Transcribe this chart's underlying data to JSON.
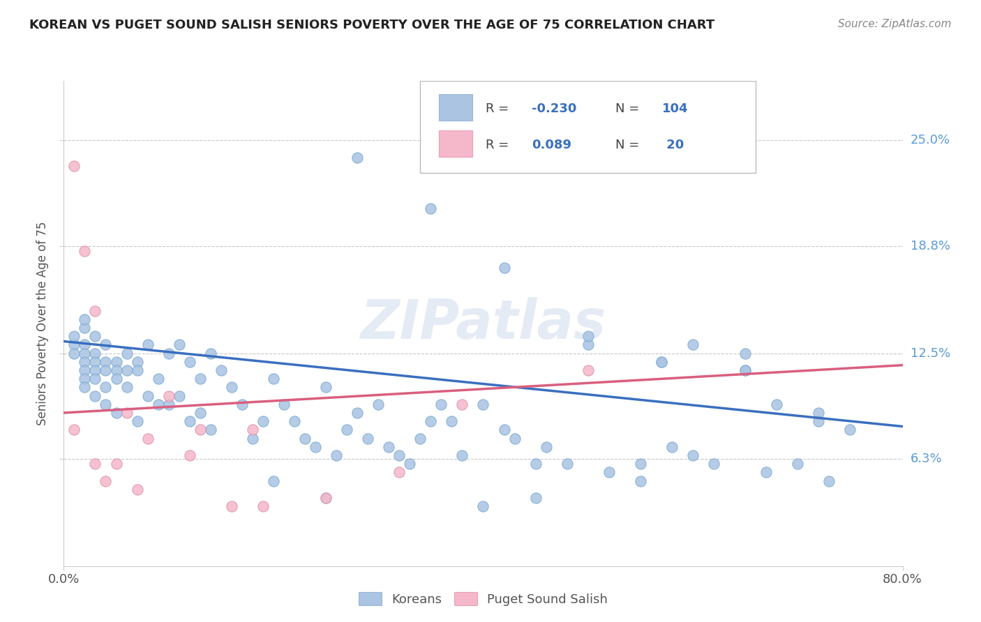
{
  "title": "KOREAN VS PUGET SOUND SALISH SENIORS POVERTY OVER THE AGE OF 75 CORRELATION CHART",
  "source": "Source: ZipAtlas.com",
  "ylabel": "Seniors Poverty Over the Age of 75",
  "xlim": [
    0.0,
    0.8
  ],
  "ylim": [
    0.0,
    0.285
  ],
  "xticklabels": [
    "0.0%",
    "80.0%"
  ],
  "ytick_positions": [
    0.063,
    0.125,
    0.188,
    0.25
  ],
  "ytick_labels": [
    "6.3%",
    "12.5%",
    "18.8%",
    "25.0%"
  ],
  "korean_R": -0.23,
  "korean_N": 104,
  "salish_R": 0.089,
  "salish_N": 20,
  "korean_color": "#aac4e2",
  "salish_color": "#f5b8ca",
  "korean_line_color": "#3a6fbf",
  "salish_line_color": "#d95f7f",
  "watermark": "ZIPatlas",
  "background_color": "#ffffff",
  "grid_color": "#c8c8c8",
  "title_color": "#222222",
  "korean_line_y0": 0.132,
  "korean_line_y1": 0.082,
  "salish_line_y0": 0.09,
  "salish_line_y1": 0.118,
  "korean_scatter_x": [
    0.01,
    0.01,
    0.01,
    0.02,
    0.02,
    0.02,
    0.02,
    0.02,
    0.02,
    0.02,
    0.02,
    0.03,
    0.03,
    0.03,
    0.03,
    0.03,
    0.03,
    0.04,
    0.04,
    0.04,
    0.04,
    0.04,
    0.05,
    0.05,
    0.05,
    0.05,
    0.06,
    0.06,
    0.06,
    0.07,
    0.07,
    0.07,
    0.08,
    0.08,
    0.09,
    0.09,
    0.1,
    0.1,
    0.11,
    0.11,
    0.12,
    0.12,
    0.13,
    0.13,
    0.14,
    0.14,
    0.15,
    0.16,
    0.17,
    0.18,
    0.19,
    0.2,
    0.21,
    0.22,
    0.23,
    0.24,
    0.25,
    0.26,
    0.27,
    0.28,
    0.29,
    0.3,
    0.31,
    0.32,
    0.33,
    0.34,
    0.35,
    0.36,
    0.37,
    0.38,
    0.4,
    0.42,
    0.43,
    0.45,
    0.46,
    0.48,
    0.5,
    0.52,
    0.55,
    0.57,
    0.58,
    0.6,
    0.62,
    0.65,
    0.65,
    0.67,
    0.68,
    0.7,
    0.72,
    0.73,
    0.75,
    0.28,
    0.35,
    0.42,
    0.5,
    0.57,
    0.65,
    0.72,
    0.6,
    0.55,
    0.45,
    0.4,
    0.2,
    0.25
  ],
  "korean_scatter_y": [
    0.13,
    0.125,
    0.135,
    0.14,
    0.13,
    0.125,
    0.12,
    0.115,
    0.11,
    0.105,
    0.145,
    0.135,
    0.125,
    0.12,
    0.115,
    0.11,
    0.1,
    0.13,
    0.12,
    0.115,
    0.105,
    0.095,
    0.12,
    0.115,
    0.11,
    0.09,
    0.125,
    0.115,
    0.105,
    0.12,
    0.115,
    0.085,
    0.13,
    0.1,
    0.11,
    0.095,
    0.125,
    0.095,
    0.13,
    0.1,
    0.12,
    0.085,
    0.11,
    0.09,
    0.125,
    0.08,
    0.115,
    0.105,
    0.095,
    0.075,
    0.085,
    0.11,
    0.095,
    0.085,
    0.075,
    0.07,
    0.105,
    0.065,
    0.08,
    0.09,
    0.075,
    0.095,
    0.07,
    0.065,
    0.06,
    0.075,
    0.085,
    0.095,
    0.085,
    0.065,
    0.095,
    0.08,
    0.075,
    0.06,
    0.07,
    0.06,
    0.13,
    0.055,
    0.05,
    0.12,
    0.07,
    0.065,
    0.06,
    0.125,
    0.115,
    0.055,
    0.095,
    0.06,
    0.085,
    0.05,
    0.08,
    0.24,
    0.21,
    0.175,
    0.135,
    0.12,
    0.115,
    0.09,
    0.13,
    0.06,
    0.04,
    0.035,
    0.05,
    0.04
  ],
  "salish_scatter_x": [
    0.01,
    0.01,
    0.02,
    0.03,
    0.03,
    0.04,
    0.05,
    0.06,
    0.07,
    0.08,
    0.1,
    0.12,
    0.13,
    0.16,
    0.18,
    0.19,
    0.25,
    0.32,
    0.38,
    0.5
  ],
  "salish_scatter_y": [
    0.235,
    0.08,
    0.185,
    0.15,
    0.06,
    0.05,
    0.06,
    0.09,
    0.045,
    0.075,
    0.1,
    0.065,
    0.08,
    0.035,
    0.08,
    0.035,
    0.04,
    0.055,
    0.095,
    0.115
  ]
}
